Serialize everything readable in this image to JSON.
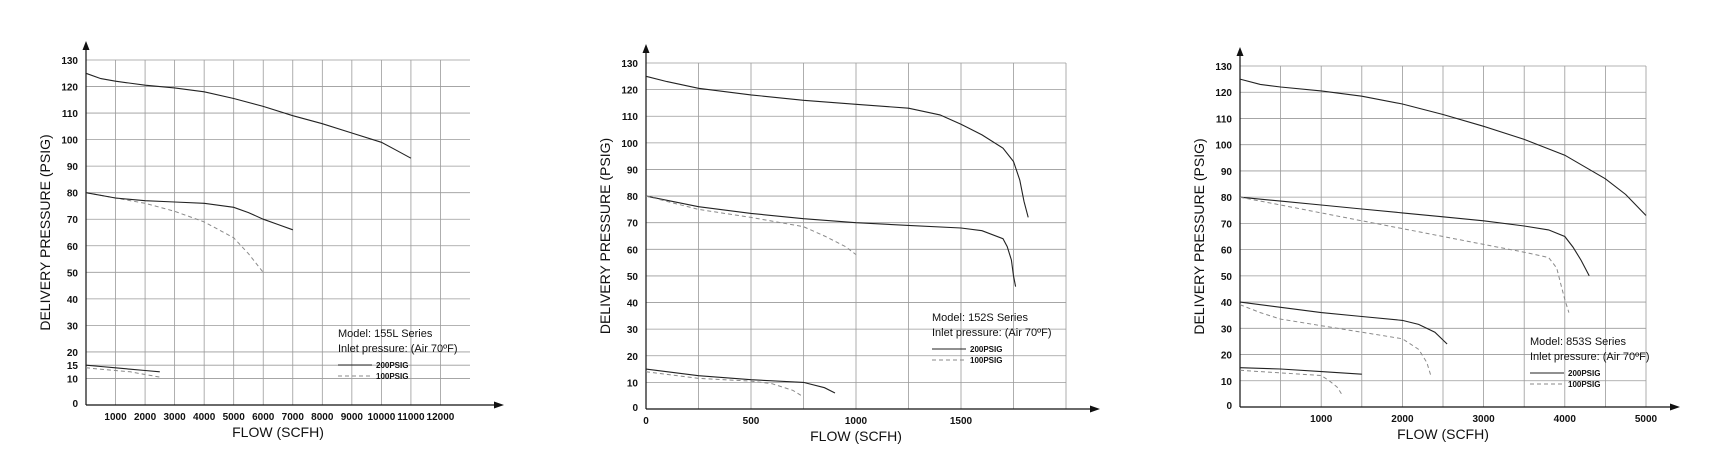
{
  "chart_data": [
    {
      "type": "line",
      "xlabel": "FLOW (SCFH)",
      "ylabel": "DELIVERY PRESSURE (PSIG)",
      "xlim": [
        0,
        13000
      ],
      "ylim": [
        0,
        130
      ],
      "grid": true,
      "x_ticks": [
        0,
        1000,
        2000,
        3000,
        4000,
        5000,
        6000,
        7000,
        8000,
        9000,
        10000,
        11000,
        12000
      ],
      "x_tick_labels": [
        "",
        "1000",
        "2000",
        "3000",
        "4000",
        "5000",
        "6000",
        "7000",
        "8000",
        "9000",
        "10000",
        "11000",
        "12000"
      ],
      "y_ticks": [
        0,
        10,
        15,
        20,
        30,
        40,
        50,
        60,
        70,
        80,
        90,
        100,
        110,
        120,
        130
      ],
      "y_tick_labels": [
        "0",
        "10",
        "15",
        "20",
        "30",
        "40",
        "50",
        "60",
        "70",
        "80",
        "90",
        "100",
        "110",
        "120",
        "130"
      ],
      "legend": {
        "placement": "bottom-right",
        "lines": [
          "Model: 155L Series",
          "Inlet pressure: (Air 70ºF)"
        ],
        "entries": [
          {
            "label": "200PSIG",
            "style": "solid"
          },
          {
            "label": "100PSIG",
            "style": "dashed"
          }
        ]
      },
      "series": [
        {
          "style": "solid",
          "x": [
            0,
            500,
            1000,
            2000,
            3000,
            4000,
            5000,
            6000,
            7000,
            8000,
            9000,
            10000,
            10500,
            11000
          ],
          "y": [
            125,
            123,
            122,
            120.5,
            119.5,
            118,
            115.5,
            112.5,
            109,
            106,
            102.5,
            99,
            96,
            93
          ]
        },
        {
          "style": "dashed",
          "x": [
            0,
            1000,
            2000,
            3000,
            4000,
            5000,
            5500,
            6000
          ],
          "y": [
            80,
            78,
            76,
            73,
            69,
            63,
            57,
            50
          ]
        },
        {
          "style": "solid",
          "x": [
            0,
            1000,
            2000,
            3000,
            4000,
            5000,
            5500,
            6000,
            6500,
            7000
          ],
          "y": [
            80,
            78,
            77,
            76.5,
            76,
            74.5,
            72.5,
            70,
            68,
            66
          ]
        },
        {
          "style": "solid",
          "x": [
            0,
            500,
            1000,
            1500,
            2000,
            2500
          ],
          "y": [
            15,
            14.5,
            14,
            13.5,
            13,
            12.5
          ]
        },
        {
          "style": "dashed",
          "x": [
            0,
            500,
            1000,
            1500,
            2000,
            2500
          ],
          "y": [
            14,
            13.5,
            13,
            12.5,
            11.5,
            10.5
          ]
        }
      ]
    },
    {
      "type": "line",
      "xlabel": "FLOW (SCFH)",
      "ylabel": "DELIVERY PRESSURE (PSIG)",
      "xlim": [
        0,
        2000
      ],
      "ylim": [
        0,
        130
      ],
      "grid": true,
      "x_ticks": [
        0,
        250,
        500,
        750,
        1000,
        1250,
        1500,
        1750,
        2000
      ],
      "x_tick_labels": [
        "0",
        "",
        "500",
        "",
        "1000",
        "",
        "1500",
        "",
        ""
      ],
      "y_ticks": [
        0,
        10,
        20,
        30,
        40,
        50,
        60,
        70,
        80,
        90,
        100,
        110,
        120,
        130
      ],
      "y_tick_labels": [
        "0",
        "10",
        "20",
        "30",
        "40",
        "50",
        "60",
        "70",
        "80",
        "90",
        "100",
        "110",
        "120",
        "130"
      ],
      "legend": {
        "placement": "bottom-right",
        "lines": [
          "Model: 152S Series",
          "Inlet pressure: (Air 70ºF)"
        ],
        "entries": [
          {
            "label": "200PSIG",
            "style": "solid"
          },
          {
            "label": "100PSIG",
            "style": "dashed"
          }
        ]
      },
      "series": [
        {
          "style": "solid",
          "x": [
            0,
            100,
            250,
            500,
            750,
            1000,
            1250,
            1400,
            1500,
            1600,
            1700,
            1750,
            1780,
            1800,
            1820
          ],
          "y": [
            125,
            123,
            120.5,
            118,
            116,
            114.5,
            113,
            110.5,
            107,
            103,
            98,
            93,
            86,
            78,
            72
          ]
        },
        {
          "style": "solid",
          "x": [
            0,
            250,
            500,
            750,
            1000,
            1250,
            1500,
            1600,
            1700,
            1720,
            1740,
            1750,
            1760
          ],
          "y": [
            80,
            76,
            73.5,
            71.5,
            70,
            69,
            68,
            67,
            64,
            61,
            56,
            50,
            46
          ]
        },
        {
          "style": "dashed",
          "x": [
            0,
            250,
            500,
            750,
            850,
            950,
            1000
          ],
          "y": [
            80,
            75,
            72,
            68.5,
            65,
            61,
            58
          ]
        },
        {
          "style": "solid",
          "x": [
            0,
            250,
            500,
            750,
            850,
            900
          ],
          "y": [
            15,
            12.5,
            11,
            10,
            8,
            6
          ]
        },
        {
          "style": "dashed",
          "x": [
            0,
            250,
            500,
            600,
            700,
            750
          ],
          "y": [
            14,
            11.5,
            10.5,
            9.5,
            7,
            4.5
          ]
        }
      ]
    },
    {
      "type": "line",
      "xlabel": "FLOW (SCFH)",
      "ylabel": "DELIVERY PRESSURE (PSIG)",
      "xlim": [
        0,
        5000
      ],
      "ylim": [
        0,
        130
      ],
      "grid": true,
      "x_ticks": [
        0,
        500,
        1000,
        1500,
        2000,
        2500,
        3000,
        3500,
        4000,
        4500,
        5000
      ],
      "x_tick_labels": [
        "",
        "",
        "1000",
        "",
        "2000",
        "",
        "3000",
        "",
        "4000",
        "",
        "5000"
      ],
      "y_ticks": [
        0,
        10,
        20,
        30,
        40,
        50,
        60,
        70,
        80,
        90,
        100,
        110,
        120,
        130
      ],
      "y_tick_labels": [
        "0",
        "10",
        "20",
        "30",
        "40",
        "50",
        "60",
        "70",
        "80",
        "90",
        "100",
        "110",
        "120",
        "130"
      ],
      "legend": {
        "placement": "bottom-right",
        "lines": [
          "Model: 853S Series",
          "Inlet pressure: (Air 70ºF)"
        ],
        "entries": [
          {
            "label": "200PSIG",
            "style": "solid"
          },
          {
            "label": "100PSIG",
            "style": "dashed"
          }
        ]
      },
      "series": [
        {
          "style": "solid",
          "x": [
            0,
            250,
            500,
            1000,
            1500,
            2000,
            2500,
            3000,
            3500,
            4000,
            4500,
            4750,
            5000
          ],
          "y": [
            125,
            123,
            122,
            120.5,
            118.5,
            115.5,
            111.5,
            107,
            102,
            96,
            87,
            81,
            73
          ]
        },
        {
          "style": "solid",
          "x": [
            0,
            500,
            1000,
            1500,
            2000,
            2500,
            3000,
            3500,
            3800,
            4000,
            4100,
            4200,
            4300
          ],
          "y": [
            80,
            78.5,
            77,
            75.5,
            74,
            72.5,
            71,
            69,
            67.5,
            65,
            61,
            56,
            50
          ]
        },
        {
          "style": "dashed",
          "x": [
            0,
            500,
            1000,
            1500,
            2000,
            2500,
            3000,
            3500,
            3800,
            3900,
            3950,
            4000,
            4050
          ],
          "y": [
            80,
            77,
            74,
            71,
            68,
            65,
            62,
            59,
            57,
            53,
            47,
            41,
            36
          ]
        },
        {
          "style": "solid",
          "x": [
            0,
            500,
            1000,
            1500,
            2000,
            2200,
            2400,
            2550
          ],
          "y": [
            40,
            38,
            36,
            34.5,
            33,
            31.5,
            28.5,
            24
          ]
        },
        {
          "style": "dashed",
          "x": [
            0,
            250,
            500,
            1000,
            1500,
            2000,
            2200,
            2300,
            2350
          ],
          "y": [
            39,
            36,
            33.5,
            31,
            28.5,
            26,
            22,
            17,
            12
          ]
        },
        {
          "style": "solid",
          "x": [
            0,
            500,
            1000,
            1500
          ],
          "y": [
            15,
            14.5,
            13.5,
            12.5
          ]
        },
        {
          "style": "dashed",
          "x": [
            0,
            500,
            1000,
            1100,
            1200,
            1250
          ],
          "y": [
            14,
            13,
            12,
            10,
            7.5,
            5
          ]
        }
      ]
    }
  ]
}
